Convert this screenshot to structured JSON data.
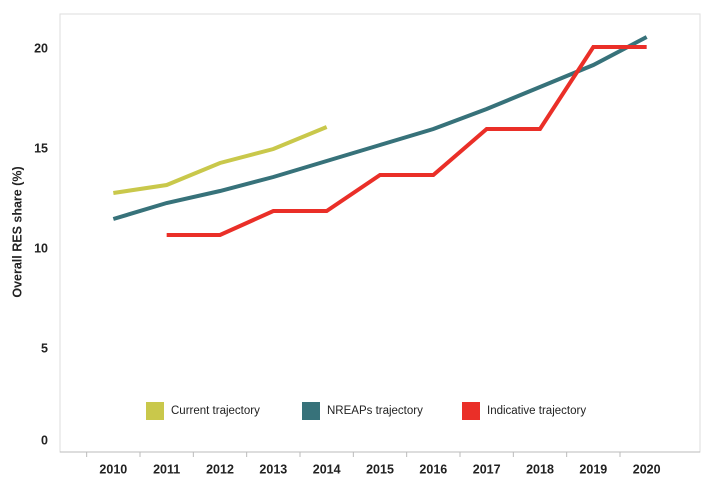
{
  "chart_data": {
    "type": "line",
    "y_label": "Overall RES share (%)",
    "x": [
      2010,
      2011,
      2012,
      2013,
      2014,
      2015,
      2016,
      2017,
      2018,
      2019,
      2020
    ],
    "series": [
      {
        "name": "Current trajectory",
        "color": "#c9c84b",
        "values": [
          12.8,
          13.2,
          14.3,
          15.0,
          16.1,
          null,
          null,
          null,
          null,
          null,
          null
        ]
      },
      {
        "name": "NREAPs trajectory",
        "color": "#37727a",
        "values": [
          11.5,
          12.3,
          12.9,
          13.6,
          14.4,
          15.2,
          16.0,
          17.0,
          18.1,
          19.2,
          20.6
        ]
      },
      {
        "name": "Indicative trajectory",
        "color": "#ea2f28",
        "values": [
          null,
          10.7,
          10.7,
          11.9,
          11.9,
          13.7,
          13.7,
          16.0,
          16.0,
          20.1,
          20.1
        ]
      }
    ],
    "xlim": [
      2009,
      2021
    ],
    "xticks": [
      2010,
      2011,
      2012,
      2013,
      2014,
      2015,
      2016,
      2017,
      2018,
      2019,
      2020
    ],
    "ylim": [
      0,
      21.75
    ],
    "yticks": [
      0,
      5,
      10,
      15,
      20
    ],
    "grid": false,
    "legend": "bottom"
  }
}
